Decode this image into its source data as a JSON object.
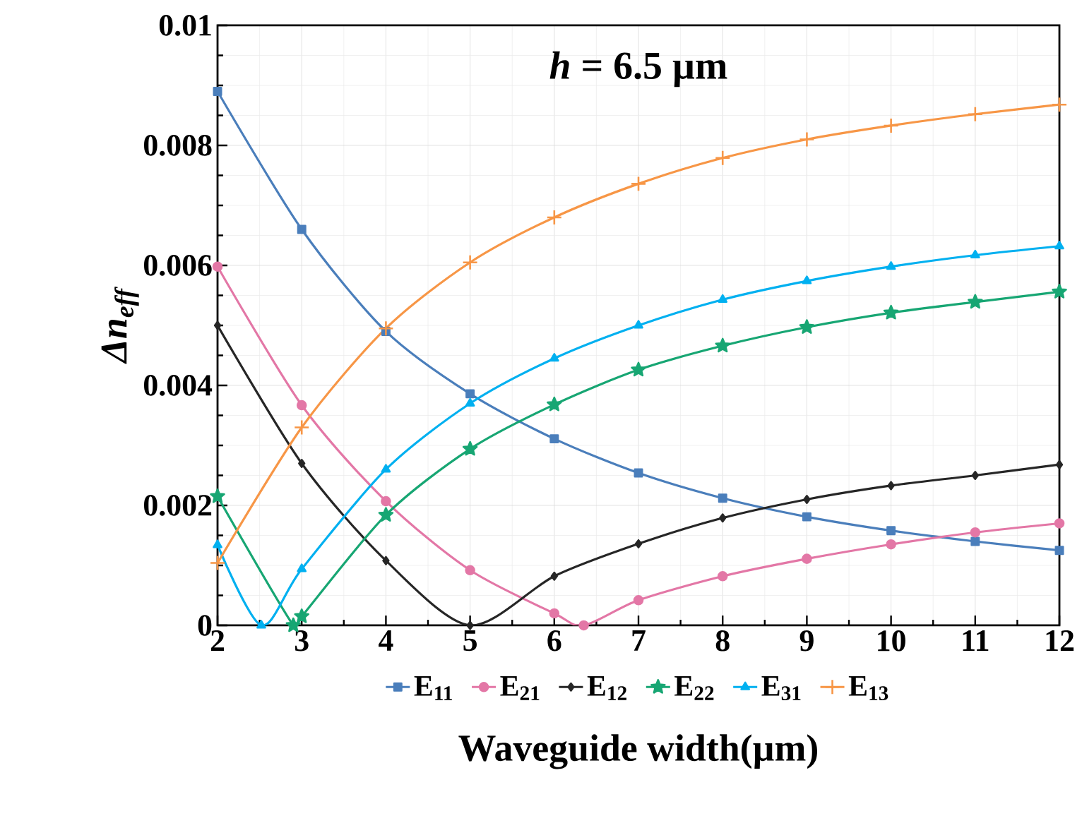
{
  "chart_data": {
    "type": "line",
    "title": "*h* = 6.5 µm",
    "xlabel": "Waveguide width(µm)",
    "ylabel": "Δn$_{eff}$",
    "xlim": [
      2,
      12
    ],
    "xticks": [
      2,
      3,
      4,
      5,
      6,
      7,
      8,
      9,
      10,
      11,
      12
    ],
    "ylim": [
      0,
      0.01
    ],
    "yticks": [
      0,
      0.002,
      0.004,
      0.006,
      0.008,
      0.01
    ],
    "grid": true,
    "legend": "bottom",
    "series": [
      {
        "name": "E$_{11}$",
        "color": "#4a7ebb",
        "marker": "square",
        "x": [
          2,
          3,
          4,
          5,
          6,
          7,
          8,
          9,
          10,
          11,
          12
        ],
        "values": [
          0.0089,
          0.0066,
          0.0049,
          0.00386,
          0.00311,
          0.00254,
          0.00212,
          0.00181,
          0.00158,
          0.0014,
          0.00125
        ]
      },
      {
        "name": "E$_{21}$",
        "color": "#e377a6",
        "marker": "circle",
        "x": [
          2,
          3,
          4,
          5,
          6,
          6.35,
          7,
          8,
          9,
          10,
          11,
          12
        ],
        "values": [
          0.00598,
          0.00367,
          0.00207,
          0.00092,
          0.0002,
          0,
          0.00042,
          0.00082,
          0.00111,
          0.00135,
          0.00155,
          0.0017
        ]
      },
      {
        "name": "E$_{12}$",
        "color": "#262626",
        "marker": "diamond",
        "x": [
          2,
          3,
          4,
          5,
          6,
          7,
          8,
          9,
          10,
          11,
          12
        ],
        "values": [
          0.005,
          0.0027,
          0.00108,
          0,
          0.00082,
          0.00136,
          0.00179,
          0.0021,
          0.00233,
          0.0025,
          0.00268
        ]
      },
      {
        "name": "E$_{22}$",
        "color": "#17a673",
        "marker": "star",
        "x": [
          2,
          2.9,
          3,
          4,
          5,
          6,
          7,
          8,
          9,
          10,
          11,
          12
        ],
        "values": [
          0.00215,
          0,
          0.00015,
          0.00184,
          0.00294,
          0.00368,
          0.00426,
          0.00466,
          0.00497,
          0.00521,
          0.00539,
          0.00556
        ]
      },
      {
        "name": "E$_{31}$",
        "color": "#00b0f0",
        "marker": "triangle",
        "x": [
          2,
          2.52,
          3,
          4,
          5,
          6,
          7,
          8,
          9,
          10,
          11,
          12
        ],
        "values": [
          0.00134,
          0,
          0.00094,
          0.0026,
          0.0037,
          0.00445,
          0.005,
          0.00543,
          0.00574,
          0.00598,
          0.00617,
          0.00632
        ]
      },
      {
        "name": "E$_{13}$",
        "color": "#f79646",
        "marker": "cross",
        "x": [
          2,
          3,
          4,
          5,
          6,
          7,
          8,
          9,
          10,
          11,
          12
        ],
        "values": [
          0.00104,
          0.0033,
          0.00495,
          0.00605,
          0.0068,
          0.00736,
          0.00779,
          0.0081,
          0.00833,
          0.00852,
          0.00868
        ]
      }
    ]
  }
}
